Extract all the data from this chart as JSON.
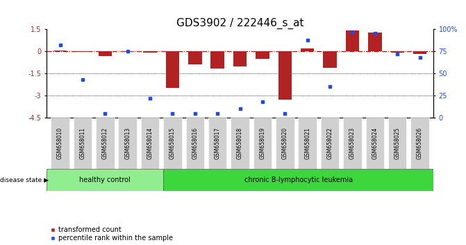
{
  "title": "GDS3902 / 222446_s_at",
  "samples": [
    "GSM658010",
    "GSM658011",
    "GSM658012",
    "GSM658013",
    "GSM658014",
    "GSM658015",
    "GSM658016",
    "GSM658017",
    "GSM658018",
    "GSM658019",
    "GSM658020",
    "GSM658021",
    "GSM658022",
    "GSM658023",
    "GSM658024",
    "GSM658025",
    "GSM658026"
  ],
  "transformed_count": [
    0.05,
    -0.05,
    -0.3,
    -0.05,
    -0.08,
    -2.5,
    -0.9,
    -1.15,
    -1.0,
    -0.5,
    -3.3,
    0.2,
    -1.1,
    1.45,
    1.3,
    -0.1,
    -0.15
  ],
  "percentile_rank": [
    82,
    43,
    5,
    75,
    22,
    5,
    5,
    5,
    10,
    18,
    5,
    88,
    35,
    97,
    96,
    72,
    68
  ],
  "healthy_count": 5,
  "disease_state_label": "disease state",
  "healthy_label": "healthy control",
  "leukemia_label": "chronic B-lymphocytic leukemia",
  "legend_red": "transformed count",
  "legend_blue": "percentile rank within the sample",
  "ylim_left": [
    -4.5,
    1.5
  ],
  "ylim_right": [
    0,
    100
  ],
  "yticks_left": [
    1.5,
    0,
    -1.5,
    -3,
    -4.5
  ],
  "yticks_right": [
    0,
    25,
    50,
    75,
    100
  ],
  "ytick_labels_left": [
    "1.5",
    "0",
    "-1.5",
    "-3",
    "-4.5"
  ],
  "ytick_labels_right": [
    "0",
    "25",
    "50",
    "75",
    "100%"
  ],
  "dotted_lines": [
    -1.5,
    -3
  ],
  "bar_color": "#b22222",
  "scatter_color": "#1e4de6",
  "hline_color": "#cc0000",
  "healthy_bg": "#90ee90",
  "leukemia_bg": "#3dd63d",
  "sample_bg": "#d0d0d0",
  "title_fontsize": 11,
  "tick_fontsize": 7,
  "bar_width": 0.6
}
